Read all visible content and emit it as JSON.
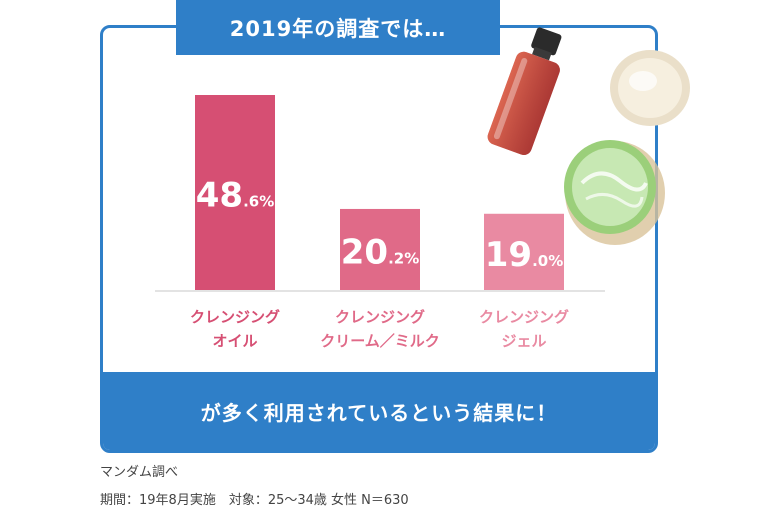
{
  "header": {
    "title": "2019年の調査では…"
  },
  "footer": {
    "text": "が多く利用されているという結果に！"
  },
  "notes": {
    "source": "マンダム調べ",
    "detail": "期間：19年8月実施　対象：25〜34歳 女性 N＝630"
  },
  "colors": {
    "accent": "#2f7fc8",
    "bars": [
      "#d64f73",
      "#e06a88",
      "#e98aa2"
    ],
    "labels": [
      "#d64f73",
      "#e06a88",
      "#e98aa2"
    ]
  },
  "chart_data": {
    "type": "bar",
    "categories": [
      [
        "クレンジング",
        "オイル"
      ],
      [
        "クレンジング",
        "クリーム／ミルク"
      ],
      [
        "クレンジング",
        "ジェル"
      ]
    ],
    "values": [
      48.6,
      20.2,
      19.0
    ],
    "value_labels": [
      {
        "main": "48",
        "sub": ".6%"
      },
      {
        "main": "20",
        "sub": ".2%"
      },
      {
        "main": "19",
        "sub": ".0%"
      }
    ],
    "title": "",
    "xlabel": "",
    "ylabel": "",
    "ylim": [
      0,
      50
    ],
    "grid": false
  }
}
